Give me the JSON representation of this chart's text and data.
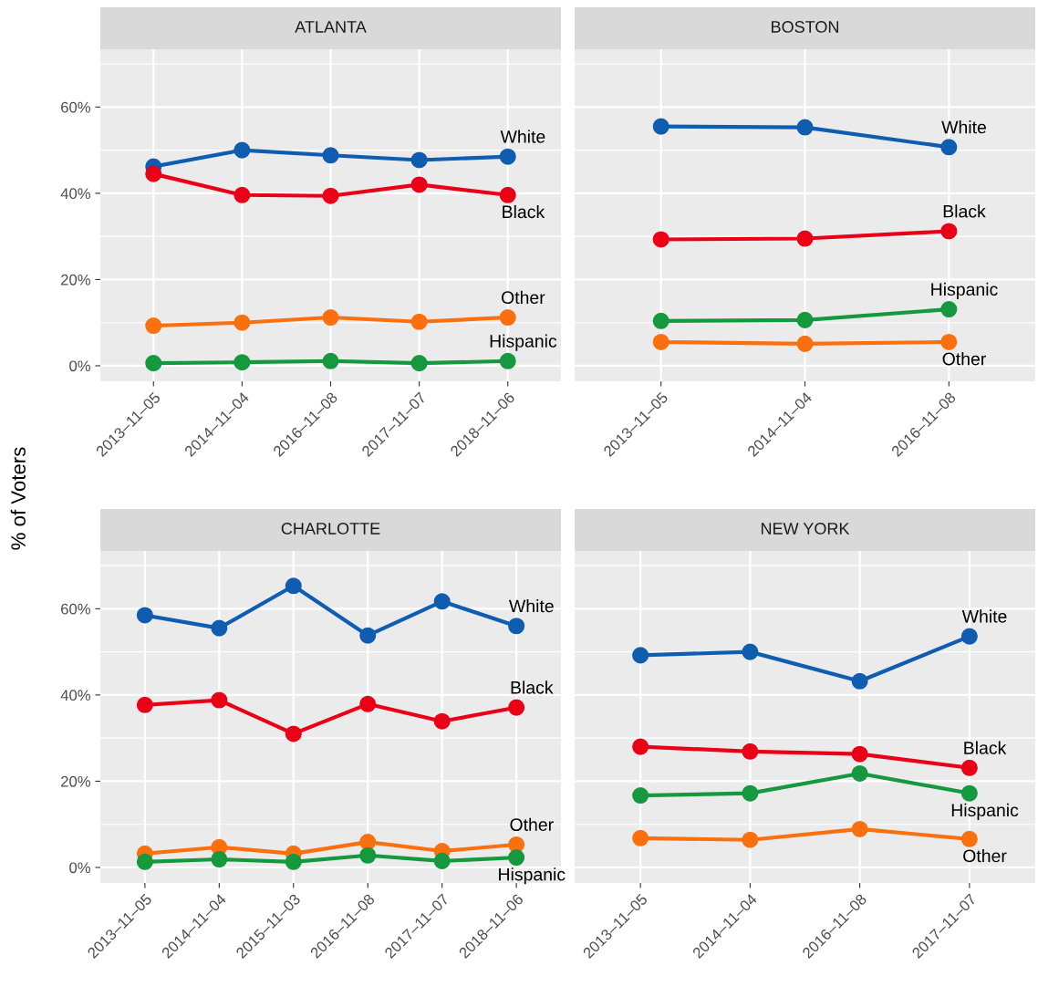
{
  "chart_data": [
    {
      "type": "line",
      "title": "ATLANTA",
      "ylabel": "% of Voters",
      "categories": [
        "2013–11–05",
        "2014–11–04",
        "2016–11–08",
        "2017–11–07",
        "2018–11–06"
      ],
      "ylim": [
        -3.6,
        73.4
      ],
      "yticks": [
        {
          "value": 0,
          "label": "0%"
        },
        {
          "value": 20,
          "label": "20%"
        },
        {
          "value": 40,
          "label": "40%"
        },
        {
          "value": 60,
          "label": "60%"
        }
      ],
      "grid": true,
      "marker": "circle",
      "line_style": "solid",
      "series": [
        {
          "name": "White",
          "color": "#0f5db0",
          "values": [
            46.2,
            50.0,
            48.8,
            47.7,
            48.5
          ]
        },
        {
          "name": "Black",
          "color": "#ea0016",
          "values": [
            44.5,
            39.6,
            39.4,
            42.0,
            39.6
          ]
        },
        {
          "name": "Other",
          "color": "#fb700e",
          "values": [
            9.3,
            10.0,
            11.2,
            10.2,
            11.2
          ]
        },
        {
          "name": "Hispanic",
          "color": "#15983e",
          "values": [
            0.6,
            0.8,
            1.1,
            0.6,
            1.1
          ]
        }
      ]
    },
    {
      "type": "line",
      "title": "BOSTON",
      "categories": [
        "2013–11–05",
        "2014–11–04",
        "2016–11–08"
      ],
      "ylim": [
        -3.6,
        73.4
      ],
      "yticks": [
        {
          "value": 0,
          "label": null
        },
        {
          "value": 20,
          "label": null
        },
        {
          "value": 40,
          "label": null
        },
        {
          "value": 60,
          "label": null
        }
      ],
      "tick_labels": "x",
      "grid": true,
      "marker": "circle",
      "line_style": "solid",
      "series": [
        {
          "name": "White",
          "color": "#0f5db0",
          "values": [
            55.5,
            55.3,
            50.7
          ]
        },
        {
          "name": "Black",
          "color": "#ea0016",
          "values": [
            29.3,
            29.5,
            31.2
          ]
        },
        {
          "name": "Hispanic",
          "color": "#15983e",
          "values": [
            10.4,
            10.6,
            13.1
          ]
        },
        {
          "name": "Other",
          "color": "#fb700e",
          "values": [
            5.5,
            5.1,
            5.5
          ]
        }
      ]
    },
    {
      "type": "line",
      "title": "CHARLOTTE",
      "categories": [
        "2013–11–05",
        "2014–11–04",
        "2015–11–03",
        "2016–11–08",
        "2017–11–07",
        "2018–11–06"
      ],
      "ylim": [
        -3.6,
        73.4
      ],
      "yticks": [
        {
          "value": 0,
          "label": "0%"
        },
        {
          "value": 20,
          "label": "20%"
        },
        {
          "value": 40,
          "label": "40%"
        },
        {
          "value": 60,
          "label": "60%"
        }
      ],
      "grid": true,
      "marker": "circle",
      "line_style": "solid",
      "series": [
        {
          "name": "White",
          "color": "#0f5db0",
          "values": [
            58.5,
            55.5,
            65.3,
            53.8,
            61.7,
            56.0
          ]
        },
        {
          "name": "Black",
          "color": "#ea0016",
          "values": [
            37.7,
            38.8,
            31.0,
            37.9,
            33.9,
            37.1
          ]
        },
        {
          "name": "Other",
          "color": "#fb700e",
          "values": [
            3.2,
            4.7,
            3.2,
            5.9,
            3.8,
            5.3
          ]
        },
        {
          "name": "Hispanic",
          "color": "#15983e",
          "values": [
            1.3,
            1.9,
            1.3,
            2.8,
            1.5,
            2.3
          ]
        }
      ]
    },
    {
      "type": "line",
      "title": "NEW YORK",
      "categories": [
        "2013–11–05",
        "2014–11–04",
        "2016–11–08",
        "2017–11–07"
      ],
      "ylim": [
        -3.6,
        73.4
      ],
      "yticks": [
        {
          "value": 0,
          "label": null
        },
        {
          "value": 20,
          "label": null
        },
        {
          "value": 40,
          "label": null
        },
        {
          "value": 60,
          "label": null
        }
      ],
      "tick_labels": "x",
      "grid": true,
      "marker": "circle",
      "line_style": "solid",
      "series": [
        {
          "name": "White",
          "color": "#0f5db0",
          "values": [
            49.2,
            50.0,
            43.2,
            53.6
          ]
        },
        {
          "name": "Black",
          "color": "#ea0016",
          "values": [
            28.0,
            26.9,
            26.3,
            23.1
          ]
        },
        {
          "name": "Hispanic",
          "color": "#15983e",
          "values": [
            16.7,
            17.2,
            21.8,
            17.2
          ]
        },
        {
          "name": "Other",
          "color": "#fb700e",
          "values": [
            6.8,
            6.4,
            8.9,
            6.6
          ]
        }
      ]
    }
  ]
}
